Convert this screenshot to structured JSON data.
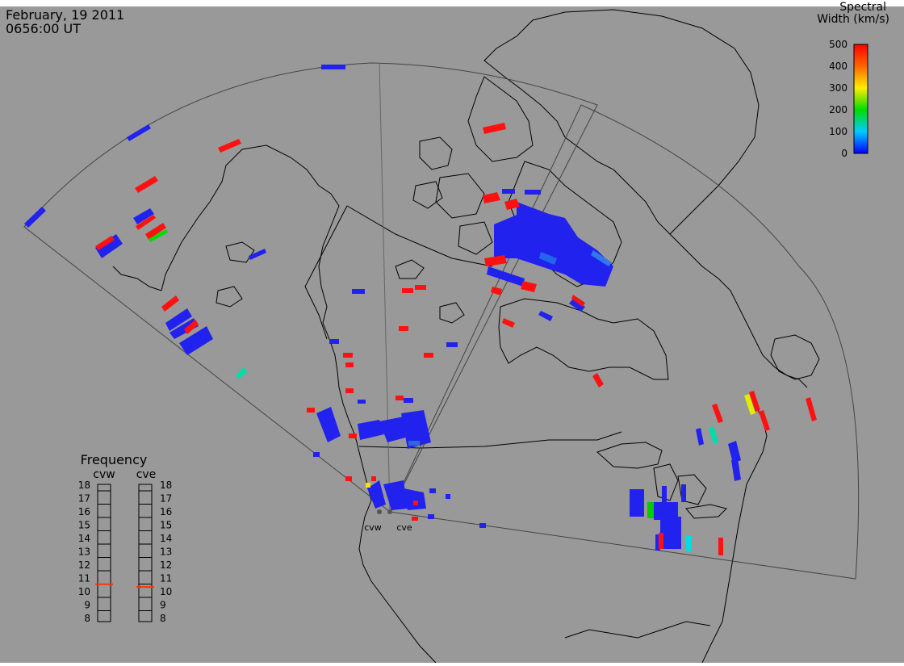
{
  "header": {
    "date": "February, 19 2011",
    "time": "0656:00 UT"
  },
  "colorbar": {
    "title_line1": "Spectral",
    "title_line2": "Width (km/s)",
    "ticks": [
      "500",
      "400",
      "300",
      "200",
      "100",
      "0"
    ],
    "colors": [
      "#ff0000",
      "#ff8800",
      "#ffdd00",
      "#00dd00",
      "#00dddd",
      "#0000ff"
    ]
  },
  "radars": {
    "west": "cvw",
    "east": "cve"
  },
  "frequency": {
    "title": "Frequency",
    "labels_west": "cvw",
    "labels_east": "cve",
    "ticks": [
      "18",
      "17",
      "16",
      "15",
      "14",
      "13",
      "12",
      "11",
      "10",
      "9",
      "8"
    ],
    "cvw_value_mhz": 10.8,
    "cve_value_mhz": 10.6,
    "marker_color": "#ff3300"
  },
  "colors": {
    "background": "#999999",
    "coast": "#000000",
    "scatter_low": "#0000ff",
    "scatter_high": "#ff0000"
  }
}
